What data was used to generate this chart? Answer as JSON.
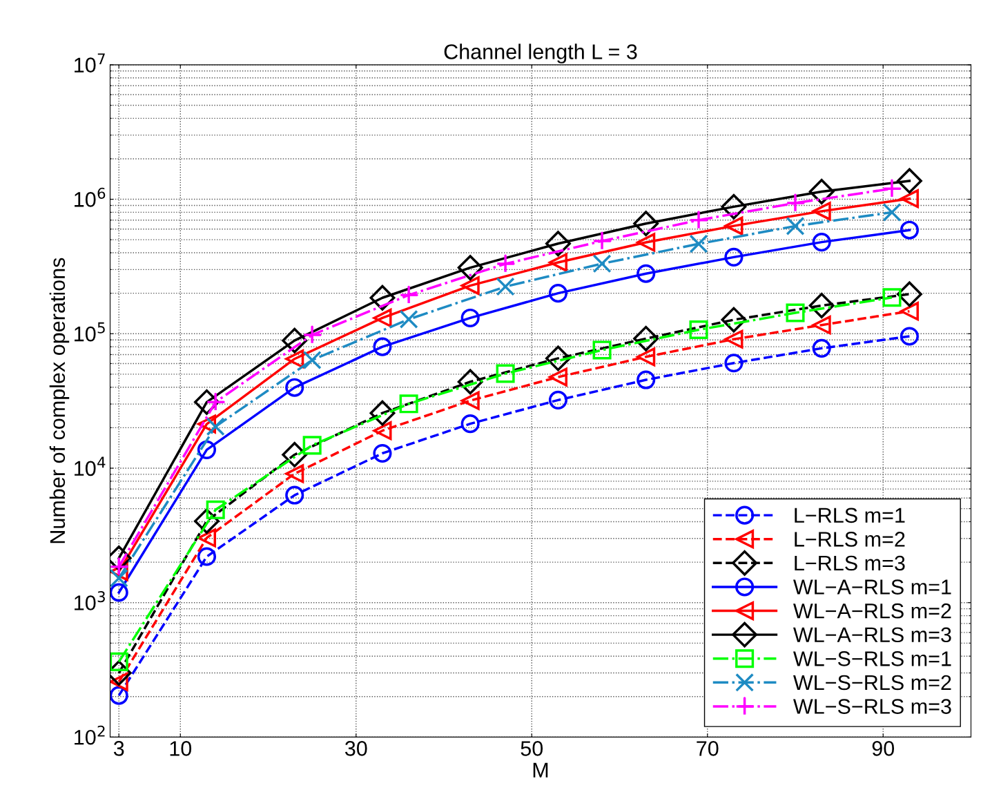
{
  "chart_data": {
    "type": "line",
    "title": "Channel length L = 3",
    "xlabel": "M",
    "ylabel": "Number of complex operations",
    "log": "y",
    "grid": true,
    "legend": "bottom right",
    "xlim": [
      2,
      100
    ],
    "xticks": [
      3,
      10,
      30,
      50,
      70,
      90
    ],
    "ylim": [
      100,
      10000000
    ],
    "yticks": [
      {
        "value": 100,
        "label": "10$^{2}$"
      },
      {
        "value": 1000,
        "label": "10$^{3}$"
      },
      {
        "value": 10000,
        "label": "10$^{4}$"
      },
      {
        "value": 100000,
        "label": "10$^{5}$"
      },
      {
        "value": 1000000,
        "label": "10$^{6}$"
      },
      {
        "value": 10000000,
        "label": "10$^{7}$"
      }
    ],
    "series": [
      {
        "name": "L−RLS m=1",
        "color": "#0000ff",
        "marker": "circle",
        "line_style": "dashed",
        "x": [
          3,
          13,
          23,
          33,
          43,
          53,
          63,
          73,
          83,
          93
        ],
        "values": [
          204,
          2200,
          6300,
          12900,
          21400,
          32100,
          45400,
          60500,
          77900,
          95700
        ]
      },
      {
        "name": "L−RLS m=2",
        "color": "#ff0000",
        "marker": "triangle-left",
        "line_style": "dashed",
        "x": [
          3,
          13,
          23,
          33,
          43,
          53,
          63,
          73,
          83,
          93
        ],
        "values": [
          258,
          3030,
          9100,
          19000,
          31800,
          47600,
          67300,
          91000,
          116000,
          147000
        ]
      },
      {
        "name": "L−RLS m=3",
        "color": "#000000",
        "marker": "diamond",
        "line_style": "dashed",
        "x": [
          3,
          13,
          23,
          33,
          43,
          53,
          63,
          73,
          83,
          93
        ],
        "values": [
          300,
          4040,
          12600,
          25700,
          43900,
          65600,
          92000,
          127000,
          162000,
          197000
        ]
      },
      {
        "name": "WL−A−RLS m=1",
        "color": "#0000ff",
        "marker": "circle",
        "line_style": "solid",
        "x": [
          3,
          13,
          23,
          33,
          43,
          53,
          63,
          73,
          83,
          93
        ],
        "values": [
          1190,
          13700,
          39800,
          80000,
          131000,
          200000,
          280000,
          371000,
          480000,
          590000
        ]
      },
      {
        "name": "WL−A−RLS m=2",
        "color": "#ff0000",
        "marker": "triangle-left",
        "line_style": "solid",
        "x": [
          3,
          13,
          23,
          33,
          43,
          53,
          63,
          73,
          83,
          93
        ],
        "values": [
          1700,
          21300,
          65000,
          131000,
          228000,
          339000,
          478000,
          634000,
          815000,
          1010000
        ]
      },
      {
        "name": "WL−A−RLS m=3",
        "color": "#000000",
        "marker": "diamond",
        "line_style": "solid",
        "x": [
          3,
          13,
          23,
          33,
          43,
          53,
          63,
          73,
          83,
          93
        ],
        "values": [
          2140,
          31000,
          89000,
          185000,
          310000,
          468000,
          660000,
          880000,
          1140000,
          1370000
        ]
      },
      {
        "name": "WL−S−RLS m=1",
        "color": "#00ff00",
        "marker": "square",
        "line_style": "dashdot",
        "x": [
          3,
          14,
          25,
          36,
          47,
          58,
          69,
          80,
          91
        ],
        "values": [
          363,
          4900,
          14800,
          30100,
          50500,
          75600,
          107000,
          143000,
          186000
        ]
      },
      {
        "name": "WL−S−RLS m=2",
        "color": "#1e8bc3",
        "marker": "x",
        "line_style": "dashdot",
        "x": [
          3,
          14,
          25,
          36,
          47,
          58,
          69,
          80,
          91
        ],
        "values": [
          1520,
          20400,
          63700,
          128000,
          224000,
          332000,
          466000,
          632000,
          800000
        ]
      },
      {
        "name": "WL−S−RLS m=3",
        "color": "#ff00ff",
        "marker": "cross",
        "line_style": "dashdot",
        "x": [
          3,
          14,
          25,
          36,
          47,
          58,
          69,
          80,
          91
        ],
        "values": [
          1850,
          31000,
          98000,
          194000,
          331000,
          489000,
          700000,
          937000,
          1200000
        ]
      }
    ]
  }
}
